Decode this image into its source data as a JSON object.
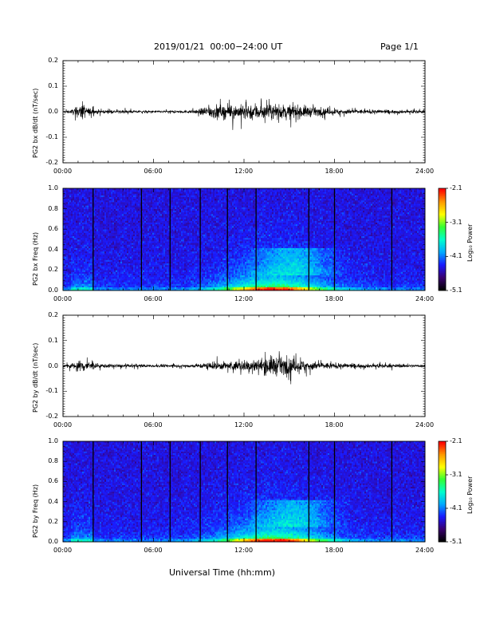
{
  "header": {
    "title": "2019/01/21  00:00−24:00 UT",
    "page": "Page 1/1"
  },
  "x_axis_title": "Universal Time (hh:mm)",
  "x_tick_labels": [
    "00:00",
    "06:00",
    "12:00",
    "18:00",
    "24:00"
  ],
  "colorbar": {
    "title": "Log₁₀ Power",
    "tick_labels": [
      "-2.1",
      "-3.1",
      "-4.1",
      "-5.1"
    ],
    "range": [
      -5.1,
      -2.1
    ],
    "colormap": [
      "#000000",
      "#3a0070",
      "#1a1aff",
      "#00aaff",
      "#00ffcc",
      "#33ff33",
      "#ffff00",
      "#ff9900",
      "#ff0000"
    ]
  },
  "chart_data": [
    {
      "type": "line",
      "ylabel": "PG2 bx dB/dt (nT/sec)",
      "xlim": [
        0,
        24
      ],
      "ylim": [
        -0.2,
        0.2
      ],
      "y_tick_labels": [
        "0.2",
        "0.1",
        "0.0",
        "-0.1",
        "-0.2"
      ],
      "x_tick_labels": [
        "00:00",
        "06:00",
        "12:00",
        "18:00",
        "24:00"
      ],
      "envelope": [
        [
          0,
          0.008
        ],
        [
          0.5,
          0.012
        ],
        [
          1.0,
          0.04
        ],
        [
          1.3,
          0.06
        ],
        [
          1.6,
          0.03
        ],
        [
          2.5,
          0.012
        ],
        [
          4,
          0.01
        ],
        [
          6,
          0.008
        ],
        [
          8,
          0.009
        ],
        [
          9,
          0.014
        ],
        [
          9.3,
          0.035
        ],
        [
          10,
          0.05
        ],
        [
          11,
          0.045
        ],
        [
          12,
          0.05
        ],
        [
          12.7,
          0.065
        ],
        [
          13.5,
          0.05
        ],
        [
          15,
          0.05
        ],
        [
          16,
          0.045
        ],
        [
          17,
          0.025
        ],
        [
          18,
          0.02
        ],
        [
          20,
          0.015
        ],
        [
          22,
          0.012
        ],
        [
          24,
          0.01
        ]
      ]
    },
    {
      "type": "heatmap",
      "ylabel": "PG2 bx Freq (Hz)",
      "xlim": [
        0,
        24
      ],
      "ylim": [
        0,
        1.0
      ],
      "y_tick_labels": [
        "1.0",
        "0.8",
        "0.6",
        "0.4",
        "0.2",
        "0.0"
      ],
      "x_tick_labels": [
        "00:00",
        "06:00",
        "12:00",
        "18:00",
        "24:00"
      ],
      "clim": [
        -5.1,
        -2.1
      ],
      "data_gaps_ut": [
        2.0,
        5.2,
        7.1,
        9.1,
        10.9,
        12.8,
        16.3,
        18.0,
        21.8
      ]
    },
    {
      "type": "line",
      "ylabel": "PG2 by dB/dt (nT/sec)",
      "xlim": [
        0,
        24
      ],
      "ylim": [
        -0.2,
        0.2
      ],
      "y_tick_labels": [
        "0.2",
        "0.1",
        "0.0",
        "-0.1",
        "-0.2"
      ],
      "x_tick_labels": [
        "00:00",
        "06:00",
        "12:00",
        "18:00",
        "24:00"
      ],
      "envelope": [
        [
          0,
          0.01
        ],
        [
          0.6,
          0.02
        ],
        [
          1.0,
          0.035
        ],
        [
          1.3,
          0.05
        ],
        [
          1.8,
          0.03
        ],
        [
          2.5,
          0.014
        ],
        [
          4,
          0.012
        ],
        [
          6,
          0.01
        ],
        [
          8,
          0.01
        ],
        [
          9,
          0.015
        ],
        [
          9.5,
          0.025
        ],
        [
          11,
          0.03
        ],
        [
          12,
          0.04
        ],
        [
          13,
          0.05
        ],
        [
          14,
          0.075
        ],
        [
          14.5,
          0.06
        ],
        [
          16,
          0.04
        ],
        [
          17,
          0.025
        ],
        [
          18,
          0.02
        ],
        [
          20,
          0.014
        ],
        [
          22,
          0.012
        ],
        [
          24,
          0.01
        ]
      ]
    },
    {
      "type": "heatmap",
      "ylabel": "PG2 by Freq (Hz)",
      "xlim": [
        0,
        24
      ],
      "ylim": [
        0,
        1.0
      ],
      "y_tick_labels": [
        "1.0",
        "0.8",
        "0.6",
        "0.4",
        "0.2",
        "0.0"
      ],
      "x_tick_labels": [
        "00:00",
        "06:00",
        "12:00",
        "18:00",
        "24:00"
      ],
      "clim": [
        -5.1,
        -2.1
      ],
      "data_gaps_ut": [
        2.0,
        5.2,
        7.1,
        9.1,
        10.9,
        12.8,
        16.3,
        18.0,
        21.8
      ]
    }
  ]
}
